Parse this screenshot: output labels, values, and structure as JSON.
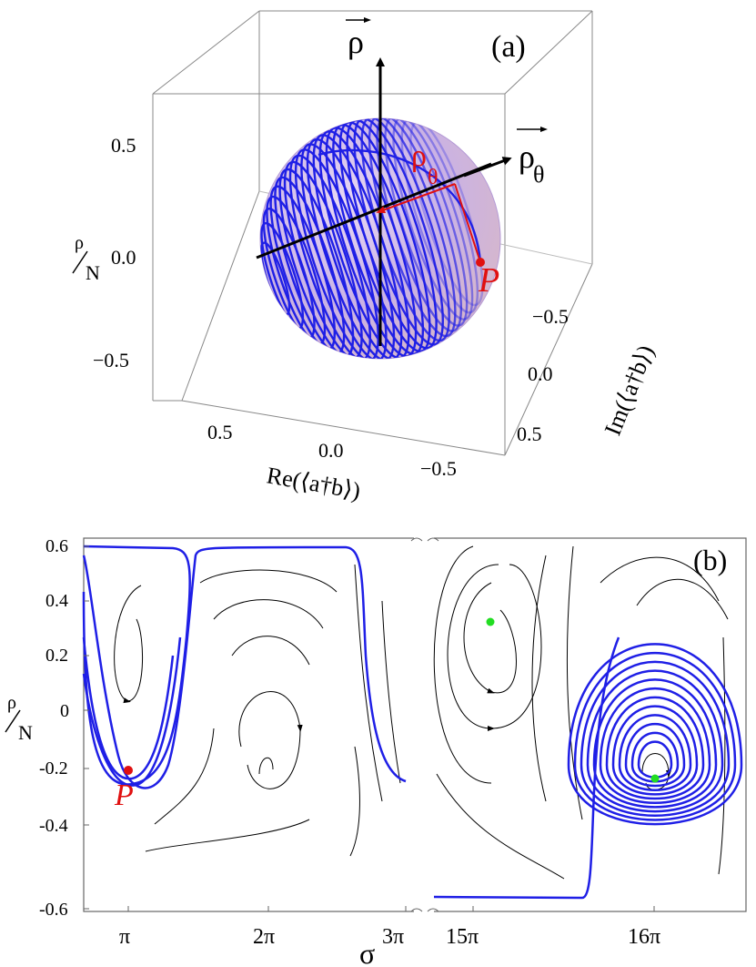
{
  "panel_a": {
    "label": "(a)",
    "z_axis_label_num": "ρ",
    "z_axis_label_den": "N",
    "z_ticks": [
      "0.5",
      "0.0",
      "−0.5"
    ],
    "x_axis_label": "Re(⟨a†b⟩)",
    "x_ticks": [
      "0.5",
      "0.0",
      "−0.5"
    ],
    "y_axis_label": "Im(⟨a†b⟩)",
    "y_ticks": [
      "−0.5",
      "0.0",
      "0.5"
    ],
    "vector_rho": "ρ",
    "vector_rho_theta": "ρ",
    "vector_rho_theta_sub": "θ",
    "inner_rho_theta": "ρ",
    "inner_rho_theta_sub": "θ",
    "point_label": "P",
    "colors": {
      "sphere_lines": "#1f1fe6",
      "annotation": "#e01010",
      "arrow": "#000000"
    }
  },
  "panel_b": {
    "label": "(b)",
    "y_axis_label_num": "ρ",
    "y_axis_label_den": "N",
    "y_ticks": [
      "0.6",
      "0.4",
      "0.2",
      "0",
      "-0.2",
      "-0.4",
      "-0.6"
    ],
    "x_ticks_left": [
      "π",
      "2π",
      "3π"
    ],
    "x_ticks_right": [
      "15π",
      "16π"
    ],
    "x_axis_label": "σ",
    "point_label": "P",
    "colors": {
      "trajectory": "#1f1fe6",
      "point_p": "#e01010",
      "fixed_points": "#22dd22",
      "streamlines": "#000000"
    }
  },
  "chart_data": {
    "type": "scatter",
    "ylim": [
      -0.62,
      0.62
    ],
    "ylabel": "ρ/N",
    "xlabel": "σ",
    "marked_points": [
      {
        "label": "P",
        "x": "π",
        "y": -0.2
      },
      {
        "label": "",
        "x": "15π",
        "y": 0.23
      },
      {
        "label": "",
        "x": "16π",
        "y": -0.23
      }
    ]
  }
}
